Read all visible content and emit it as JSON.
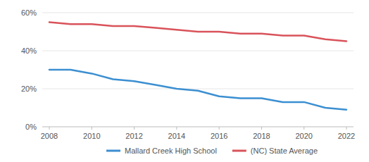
{
  "chart_data": {
    "type": "line",
    "x": [
      2008,
      2009,
      2010,
      2011,
      2012,
      2013,
      2014,
      2015,
      2016,
      2017,
      2018,
      2019,
      2020,
      2021,
      2022
    ],
    "series": [
      {
        "name": "Mallard Creek High School",
        "color": "#3b8fd1",
        "values": [
          30,
          30,
          28,
          25,
          24,
          22,
          20,
          19,
          16,
          15,
          15,
          13,
          13,
          10,
          9
        ]
      },
      {
        "name": "(NC) State Average",
        "color": "#d9535a",
        "values": [
          55,
          54,
          54,
          53,
          53,
          52,
          51,
          50,
          50,
          49,
          49,
          48,
          48,
          46,
          45
        ]
      }
    ],
    "xlim": [
      2008,
      2022
    ],
    "xticks": [
      2008,
      2010,
      2012,
      2014,
      2016,
      2018,
      2020,
      2022
    ],
    "ylim": [
      0,
      60
    ],
    "yticks": [
      {
        "value": 0,
        "label": "0%"
      },
      {
        "value": 20,
        "label": "20%"
      },
      {
        "value": 40,
        "label": "40%"
      },
      {
        "value": 60,
        "label": "60%"
      }
    ],
    "grid": true,
    "legend": "bottom"
  }
}
